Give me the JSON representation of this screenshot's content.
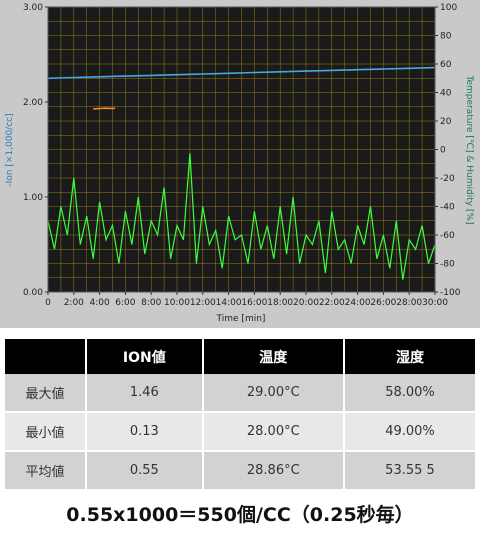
{
  "chart_data": {
    "type": "line",
    "xlabel": "Time [min]",
    "ylabel_left": "-Ion [×1,000/cc]",
    "ylabel_right": "Temperature [℃] & Humidity [%]",
    "x_ticks": [
      "0",
      "2:00",
      "4:00",
      "6:00",
      "8:00",
      "10:00",
      "12:00",
      "14:00",
      "16:00",
      "18:00",
      "20:00",
      "22:00",
      "24:00",
      "26:00",
      "28:00",
      "30:00"
    ],
    "y_left_ticks": [
      "0.00",
      "1.00",
      "2.00",
      "3.00"
    ],
    "y_right_ticks": [
      "-100",
      "-80",
      "-60",
      "-40",
      "-20",
      "0",
      "20",
      "40",
      "60",
      "80",
      "100"
    ],
    "xlim": [
      0,
      30
    ],
    "ylim_left": [
      0,
      3
    ],
    "ylim_right": [
      -100,
      100
    ],
    "grid": true,
    "colors": {
      "background": "#1a1a1a",
      "grid": "#b59a1a",
      "ion": "#3cff3c",
      "humidity": "#4aa8e0",
      "temperature": "#ff8a2a"
    },
    "series": [
      {
        "axis": "right",
        "color": "#4aa8e0",
        "x": [
          0,
          2,
          4,
          6,
          8,
          10,
          12,
          14,
          16,
          18,
          20,
          22,
          24,
          26,
          28,
          30
        ],
        "y": [
          50,
          50.5,
          51,
          51.5,
          52,
          52.5,
          53,
          53.5,
          54,
          54.5,
          55,
          55.5,
          56,
          56.5,
          57,
          57.5
        ]
      },
      {
        "axis": "right",
        "color": "#ff8a2a",
        "x": [
          3.5,
          4,
          4.5,
          5,
          5.2
        ],
        "y": [
          28.5,
          28.8,
          29,
          28.8,
          28.9
        ]
      },
      {
        "axis": "left",
        "color": "#3cff3c",
        "x": [
          0,
          0.5,
          1,
          1.5,
          2,
          2.5,
          3,
          3.5,
          4,
          4.5,
          5,
          5.5,
          6,
          6.5,
          7,
          7.5,
          8,
          8.5,
          9,
          9.5,
          10,
          10.5,
          11,
          11.5,
          12,
          12.5,
          13,
          13.5,
          14,
          14.5,
          15,
          15.5,
          16,
          16.5,
          17,
          17.5,
          18,
          18.5,
          19,
          19.5,
          20,
          20.5,
          21,
          21.5,
          22,
          22.5,
          23,
          23.5,
          24,
          24.5,
          25,
          25.5,
          26,
          26.5,
          27,
          27.5,
          28,
          28.5,
          29,
          29.5,
          30
        ],
        "y": [
          0.75,
          0.45,
          0.9,
          0.6,
          1.2,
          0.5,
          0.8,
          0.35,
          0.95,
          0.55,
          0.7,
          0.3,
          0.85,
          0.5,
          1.0,
          0.4,
          0.75,
          0.6,
          1.1,
          0.35,
          0.7,
          0.55,
          1.46,
          0.3,
          0.9,
          0.5,
          0.65,
          0.25,
          0.8,
          0.55,
          0.6,
          0.3,
          0.85,
          0.45,
          0.7,
          0.35,
          0.9,
          0.4,
          1.0,
          0.3,
          0.6,
          0.5,
          0.75,
          0.2,
          0.85,
          0.45,
          0.55,
          0.3,
          0.7,
          0.5,
          0.9,
          0.35,
          0.6,
          0.25,
          0.75,
          0.13,
          0.55,
          0.45,
          0.7,
          0.3,
          0.5
        ]
      }
    ]
  },
  "table": {
    "headers": [
      "",
      "ION値",
      "温度",
      "湿度"
    ],
    "rows": [
      [
        "最大値",
        "1.46",
        "29.00°C",
        "58.00%"
      ],
      [
        "最小値",
        "0.13",
        "28.00°C",
        "49.00%"
      ],
      [
        "平均値",
        "0.55",
        "28.86°C",
        "53.55 5"
      ]
    ]
  },
  "formula": "0.55x1000＝550個/CC（0.25秒毎）"
}
